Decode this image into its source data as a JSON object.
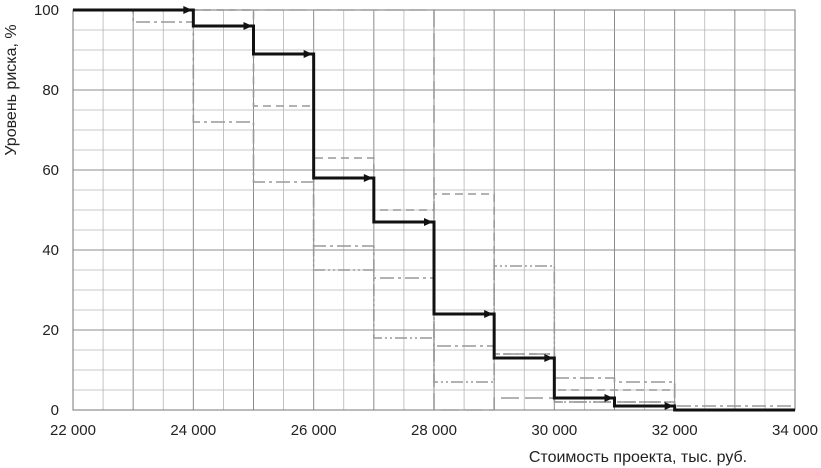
{
  "chart_data": {
    "type": "line",
    "xlabel": "Стоимость проекта, тыс. руб.",
    "ylabel": "Уровень риска, %",
    "xlim": [
      22000,
      34000
    ],
    "ylim": [
      0,
      100
    ],
    "x_ticks": [
      "22 000",
      "24 000",
      "26 000",
      "28 000",
      "30 000",
      "32 000",
      "34 000"
    ],
    "y_ticks": [
      "0",
      "20",
      "40",
      "60",
      "80",
      "100"
    ],
    "grid": true,
    "step": true,
    "series": [
      {
        "color": "#111111",
        "style": "solid-arrows",
        "points": [
          [
            22000,
            100
          ],
          [
            24000,
            100
          ],
          [
            24000,
            96
          ],
          [
            25000,
            96
          ],
          [
            25000,
            89
          ],
          [
            26000,
            89
          ],
          [
            26000,
            58
          ],
          [
            27000,
            58
          ],
          [
            27000,
            47
          ],
          [
            28000,
            47
          ],
          [
            28000,
            24
          ],
          [
            29000,
            24
          ],
          [
            29000,
            13
          ],
          [
            30000,
            13
          ],
          [
            30000,
            3
          ],
          [
            31000,
            3
          ],
          [
            31000,
            1
          ],
          [
            32000,
            1
          ],
          [
            32000,
            0
          ],
          [
            34000,
            0
          ]
        ]
      },
      {
        "color": "#999999",
        "style": "dash",
        "points": [
          [
            22000,
            100
          ],
          [
            24000,
            100
          ],
          [
            25000,
            100
          ],
          [
            25000,
            76
          ],
          [
            26000,
            76
          ],
          [
            26000,
            63
          ],
          [
            27000,
            63
          ],
          [
            27000,
            50
          ],
          [
            28000,
            50
          ],
          [
            28000,
            54
          ],
          [
            29000,
            54
          ],
          [
            29000,
            14
          ],
          [
            30000,
            14
          ],
          [
            30000,
            5
          ],
          [
            31000,
            5
          ],
          [
            32000,
            5
          ],
          [
            32000,
            0
          ],
          [
            34000,
            0
          ]
        ]
      },
      {
        "color": "#999999",
        "style": "dash-dot",
        "points": [
          [
            22000,
            100
          ],
          [
            23000,
            100
          ],
          [
            23000,
            97
          ],
          [
            24000,
            97
          ],
          [
            24000,
            72
          ],
          [
            25000,
            72
          ],
          [
            25000,
            57
          ],
          [
            26000,
            57
          ],
          [
            26000,
            41
          ],
          [
            27000,
            41
          ],
          [
            27000,
            33
          ],
          [
            28000,
            33
          ],
          [
            28000,
            16
          ],
          [
            29000,
            16
          ],
          [
            29000,
            14
          ],
          [
            30000,
            14
          ],
          [
            30000,
            8
          ],
          [
            31000,
            8
          ],
          [
            31000,
            7
          ],
          [
            32000,
            7
          ],
          [
            32000,
            1
          ],
          [
            34000,
            1
          ]
        ]
      },
      {
        "color": "#999999",
        "style": "dash-dot-dot",
        "points": [
          [
            22000,
            100
          ],
          [
            23000,
            100
          ],
          [
            24000,
            100
          ],
          [
            24000,
            96
          ],
          [
            25000,
            96
          ],
          [
            25000,
            89
          ],
          [
            26000,
            89
          ],
          [
            26000,
            35
          ],
          [
            27000,
            35
          ],
          [
            27000,
            18
          ],
          [
            28000,
            18
          ],
          [
            28000,
            7
          ],
          [
            29000,
            7
          ],
          [
            29000,
            36
          ],
          [
            30000,
            36
          ],
          [
            30000,
            2
          ],
          [
            31000,
            2
          ],
          [
            32000,
            2
          ],
          [
            32000,
            0
          ],
          [
            34000,
            0
          ]
        ]
      },
      {
        "color": "#999999",
        "style": "long-dash",
        "points": [
          [
            22000,
            100
          ],
          [
            24000,
            100
          ],
          [
            25000,
            100
          ],
          [
            25000,
            100
          ],
          [
            26000,
            100
          ],
          [
            26000,
            100
          ],
          [
            27000,
            100
          ],
          [
            28000,
            100
          ],
          [
            28000,
            0
          ],
          [
            29000,
            0
          ],
          [
            29000,
            3
          ],
          [
            30000,
            3
          ],
          [
            30000,
            2
          ],
          [
            31000,
            2
          ],
          [
            32000,
            2
          ],
          [
            32000,
            0
          ],
          [
            34000,
            0
          ]
        ]
      }
    ]
  }
}
